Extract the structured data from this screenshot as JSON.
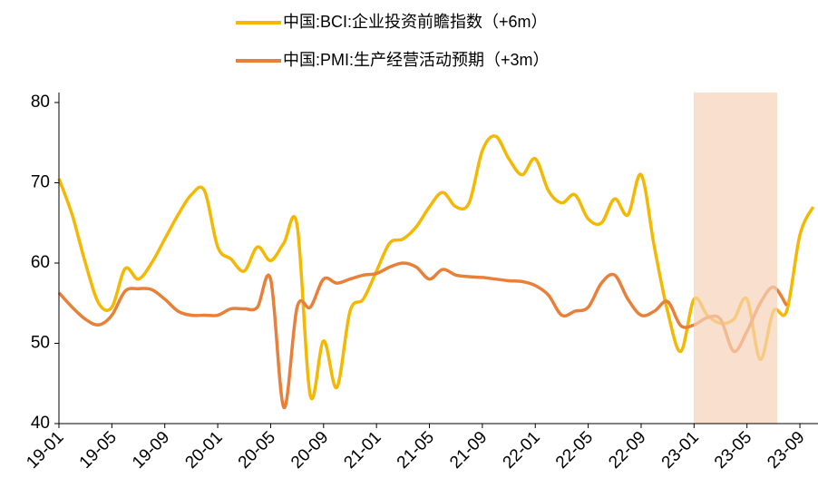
{
  "chart_data": {
    "type": "line",
    "categories": [
      "19-01",
      null,
      null,
      null,
      "19-05",
      null,
      null,
      null,
      "19-09",
      null,
      null,
      null,
      "20-01",
      null,
      null,
      null,
      "20-05",
      null,
      null,
      null,
      "20-09",
      null,
      null,
      null,
      "21-01",
      null,
      null,
      null,
      "21-05",
      null,
      null,
      null,
      "21-09",
      null,
      null,
      null,
      "22-01",
      null,
      null,
      null,
      "22-05",
      null,
      null,
      null,
      "22-09",
      null,
      null,
      null,
      "23-01",
      null,
      null,
      null,
      "23-05",
      null,
      null,
      null,
      "23-09",
      null
    ],
    "series": [
      {
        "name": "中国:BCI:企业投资前瞻指数（+6m）",
        "color": "#f5b800",
        "values": [
          70.5,
          66,
          60,
          55,
          54.5,
          59.3,
          58,
          60,
          63,
          66,
          68.5,
          69,
          62,
          60.5,
          59,
          62,
          60.3,
          62.5,
          64.7,
          43.5,
          50.3,
          44.5,
          54,
          55.5,
          59,
          62.5,
          63,
          64.5,
          67,
          68.8,
          67,
          67.5,
          74,
          75.8,
          73,
          71,
          73,
          69,
          67.5,
          68.5,
          65.5,
          65,
          68,
          66,
          71,
          62,
          54,
          49,
          55.5,
          53.5,
          52.5,
          53,
          55.5,
          48,
          54,
          54,
          63.5,
          67
        ]
      },
      {
        "name": "中国:PMI:生产经营活动预期（+3m）",
        "color": "#e8803a",
        "values": [
          56.3,
          54.5,
          53,
          52.3,
          53.5,
          56.5,
          56.8,
          56.7,
          55.5,
          54,
          53.5,
          53.5,
          53.5,
          54.3,
          54.3,
          54.5,
          58,
          42,
          54.5,
          54.5,
          58,
          57.5,
          58,
          58.5,
          58.7,
          59.5,
          60,
          59.5,
          58,
          59.2,
          58.5,
          58.3,
          58.2,
          58,
          57.8,
          57.7,
          57.2,
          56,
          53.5,
          54,
          54.5,
          57.5,
          58.5,
          55.5,
          53.5,
          54,
          55.2,
          52.2,
          52.3,
          53.2,
          53,
          49,
          51.5,
          55,
          57,
          54.7,
          null,
          null
        ]
      }
    ],
    "ylim": [
      40,
      80
    ],
    "yticks": [
      40,
      50,
      60,
      70,
      80
    ],
    "grid": false,
    "legend": "top"
  }
}
